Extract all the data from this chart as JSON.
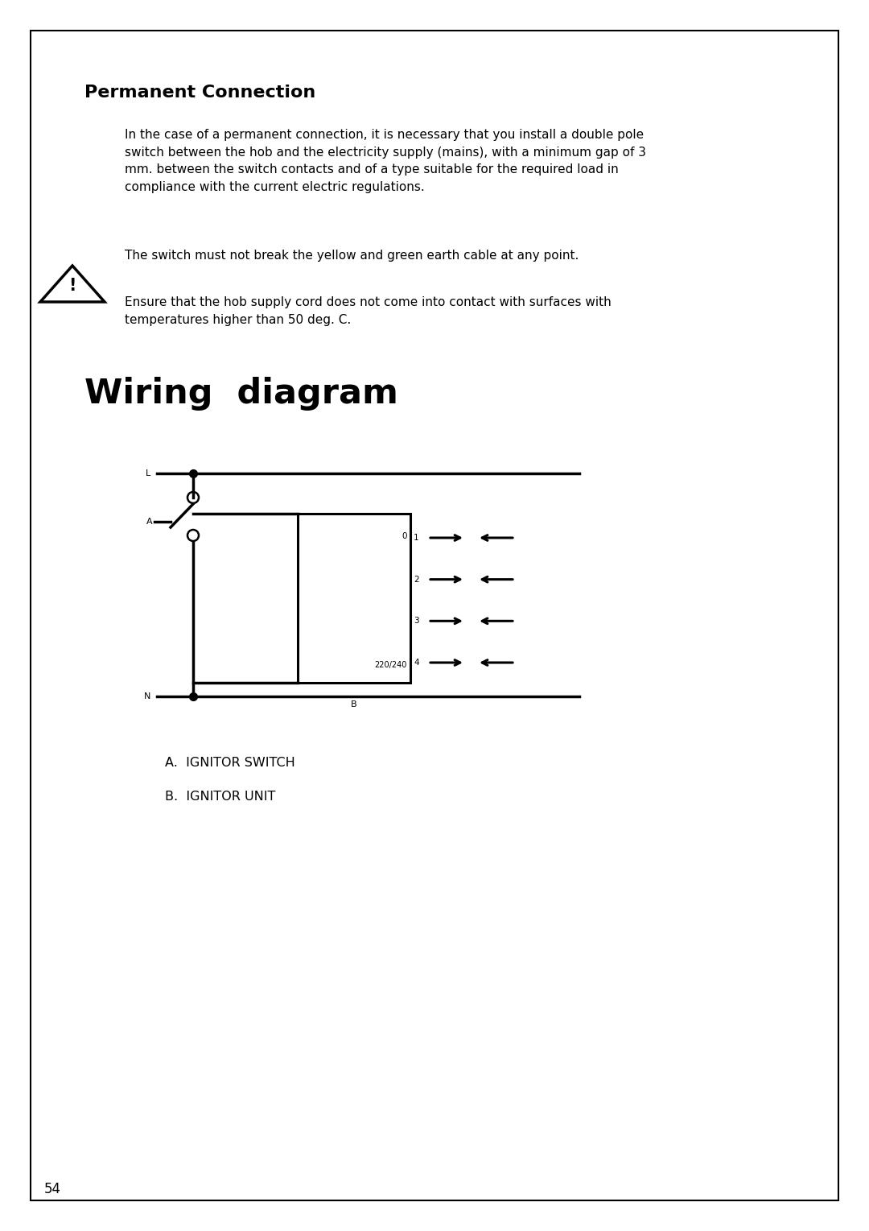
{
  "bg_color": "#ffffff",
  "border_color": "#000000",
  "page_number": "54",
  "section_title": "Permanent Connection",
  "body_text1": "In the case of a permanent connection, it is necessary that you install a double pole\nswitch between the hob and the electricity supply (mains), with a minimum gap of 3\nmm. between the switch contacts and of a type suitable for the required load in\ncompliance with the current electric regulations.",
  "body_text2": "The switch must not break the yellow and green earth cable at any point.",
  "warning_text": "Ensure that the hob supply cord does not come into contact with surfaces with\ntemperatures higher than 50 deg. C.",
  "wiring_title": "Wiring  diagram",
  "legend_a": "A.  IGNITOR SWITCH",
  "legend_b": "B.  IGNITOR UNIT",
  "diagram": {
    "L_label": "L",
    "N_label": "N",
    "A_label": "A",
    "B_label": "B",
    "outputs": [
      "1",
      "2",
      "3",
      "4"
    ],
    "voltage_label": "220/240",
    "zero_label": "0"
  }
}
